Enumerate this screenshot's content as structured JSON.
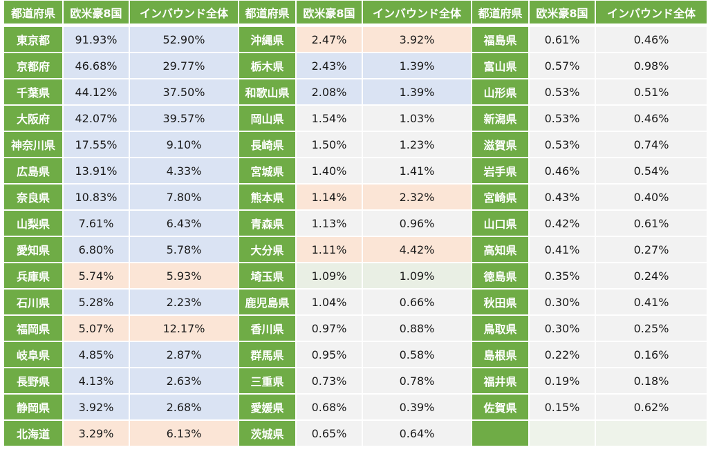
{
  "headers": [
    "都道府県",
    "欧米豪8国",
    "インバウンド全体",
    "都道府県",
    "欧米豪8国",
    "インバウンド全体",
    "都道府県",
    "欧米豪8国",
    "インバウンド全体"
  ],
  "colors": {
    "header_green": "#6fac46",
    "gray": "#f2f2f2",
    "blue": "#dae3f3",
    "orange": "#fbe5d6",
    "light_green": "#e9efe4"
  },
  "groups": [
    {
      "rows": [
        {
          "pref": "東京都",
          "westerners": "91.93%",
          "inbound": "52.90%",
          "tint": "blue"
        },
        {
          "pref": "京都府",
          "westerners": "46.68%",
          "inbound": "29.77%",
          "tint": "blue"
        },
        {
          "pref": "千葉県",
          "westerners": "44.12%",
          "inbound": "37.50%",
          "tint": "blue"
        },
        {
          "pref": "大阪府",
          "westerners": "42.07%",
          "inbound": "39.57%",
          "tint": "blue"
        },
        {
          "pref": "神奈川県",
          "westerners": "17.55%",
          "inbound": "9.10%",
          "tint": "blue"
        },
        {
          "pref": "広島県",
          "westerners": "13.91%",
          "inbound": "4.33%",
          "tint": "blue"
        },
        {
          "pref": "奈良県",
          "westerners": "10.83%",
          "inbound": "7.80%",
          "tint": "blue"
        },
        {
          "pref": "山梨県",
          "westerners": "7.61%",
          "inbound": "6.43%",
          "tint": "blue"
        },
        {
          "pref": "愛知県",
          "westerners": "6.80%",
          "inbound": "5.78%",
          "tint": "blue"
        },
        {
          "pref": "兵庫県",
          "westerners": "5.74%",
          "inbound": "5.93%",
          "tint": "orange"
        },
        {
          "pref": "石川県",
          "westerners": "5.28%",
          "inbound": "2.23%",
          "tint": "blue"
        },
        {
          "pref": "福岡県",
          "westerners": "5.07%",
          "inbound": "12.17%",
          "tint": "orange"
        },
        {
          "pref": "岐阜県",
          "westerners": "4.85%",
          "inbound": "2.87%",
          "tint": "blue"
        },
        {
          "pref": "長野県",
          "westerners": "4.13%",
          "inbound": "2.63%",
          "tint": "blue"
        },
        {
          "pref": "静岡県",
          "westerners": "3.92%",
          "inbound": "2.68%",
          "tint": "blue"
        },
        {
          "pref": "北海道",
          "westerners": "3.29%",
          "inbound": "6.13%",
          "tint": "orange"
        }
      ]
    },
    {
      "rows": [
        {
          "pref": "沖縄県",
          "westerners": "2.47%",
          "inbound": "3.92%",
          "tint": "orange"
        },
        {
          "pref": "栃木県",
          "westerners": "2.43%",
          "inbound": "1.39%",
          "tint": "blue"
        },
        {
          "pref": "和歌山県",
          "westerners": "2.08%",
          "inbound": "1.39%",
          "tint": "blue"
        },
        {
          "pref": "岡山県",
          "westerners": "1.54%",
          "inbound": "1.03%",
          "tint": "gray"
        },
        {
          "pref": "長崎県",
          "westerners": "1.50%",
          "inbound": "1.23%",
          "tint": "gray"
        },
        {
          "pref": "宮城県",
          "westerners": "1.40%",
          "inbound": "1.41%",
          "tint": "gray"
        },
        {
          "pref": "熊本県",
          "westerners": "1.14%",
          "inbound": "2.32%",
          "tint": "orange"
        },
        {
          "pref": "青森県",
          "westerners": "1.13%",
          "inbound": "0.96%",
          "tint": "gray"
        },
        {
          "pref": "大分県",
          "westerners": "1.11%",
          "inbound": "4.42%",
          "tint": "orange"
        },
        {
          "pref": "埼玉県",
          "westerners": "1.09%",
          "inbound": "1.09%",
          "tint": "green"
        },
        {
          "pref": "鹿児島県",
          "westerners": "1.04%",
          "inbound": "0.66%",
          "tint": "gray"
        },
        {
          "pref": "香川県",
          "westerners": "0.97%",
          "inbound": "0.88%",
          "tint": "gray"
        },
        {
          "pref": "群馬県",
          "westerners": "0.95%",
          "inbound": "0.58%",
          "tint": "gray"
        },
        {
          "pref": "三重県",
          "westerners": "0.73%",
          "inbound": "0.78%",
          "tint": "gray"
        },
        {
          "pref": "愛媛県",
          "westerners": "0.68%",
          "inbound": "0.39%",
          "tint": "gray"
        },
        {
          "pref": "茨城県",
          "westerners": "0.65%",
          "inbound": "0.64%",
          "tint": "gray"
        }
      ]
    },
    {
      "rows": [
        {
          "pref": "福島県",
          "westerners": "0.61%",
          "inbound": "0.46%",
          "tint": "gray"
        },
        {
          "pref": "富山県",
          "westerners": "0.57%",
          "inbound": "0.98%",
          "tint": "gray"
        },
        {
          "pref": "山形県",
          "westerners": "0.53%",
          "inbound": "0.51%",
          "tint": "gray"
        },
        {
          "pref": "新潟県",
          "westerners": "0.53%",
          "inbound": "0.46%",
          "tint": "gray"
        },
        {
          "pref": "滋賀県",
          "westerners": "0.53%",
          "inbound": "0.74%",
          "tint": "gray"
        },
        {
          "pref": "岩手県",
          "westerners": "0.46%",
          "inbound": "0.54%",
          "tint": "gray"
        },
        {
          "pref": "宮崎県",
          "westerners": "0.43%",
          "inbound": "0.40%",
          "tint": "gray"
        },
        {
          "pref": "山口県",
          "westerners": "0.42%",
          "inbound": "0.61%",
          "tint": "gray"
        },
        {
          "pref": "高知県",
          "westerners": "0.41%",
          "inbound": "0.27%",
          "tint": "gray"
        },
        {
          "pref": "徳島県",
          "westerners": "0.35%",
          "inbound": "0.24%",
          "tint": "gray"
        },
        {
          "pref": "秋田県",
          "westerners": "0.30%",
          "inbound": "0.41%",
          "tint": "gray"
        },
        {
          "pref": "鳥取県",
          "westerners": "0.30%",
          "inbound": "0.25%",
          "tint": "gray"
        },
        {
          "pref": "島根県",
          "westerners": "0.22%",
          "inbound": "0.16%",
          "tint": "gray"
        },
        {
          "pref": "福井県",
          "westerners": "0.19%",
          "inbound": "0.18%",
          "tint": "gray"
        },
        {
          "pref": "佐賀県",
          "westerners": "0.15%",
          "inbound": "0.62%",
          "tint": "gray"
        },
        {
          "pref": "",
          "westerners": "",
          "inbound": "",
          "tint": "empty"
        }
      ]
    }
  ]
}
